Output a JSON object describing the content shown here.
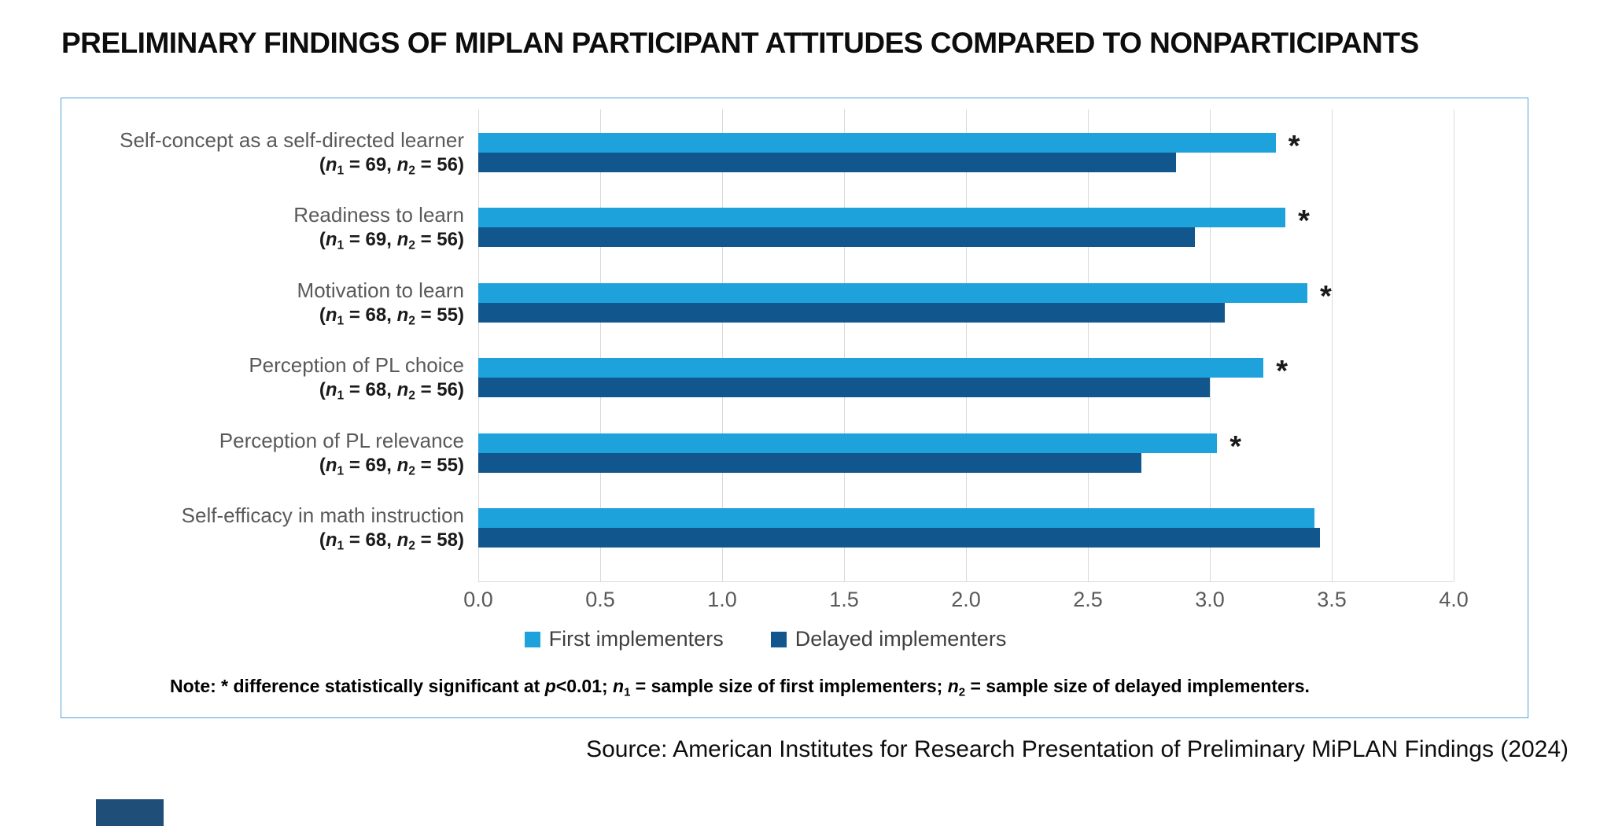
{
  "page": {
    "title": "PRELIMINARY FINDINGS OF MIPLAN PARTICIPANT ATTITUDES COMPARED TO NONPARTICIPANTS",
    "source": "Source: American Institutes for Research Presentation of Preliminary MiPLAN Findings (2024)"
  },
  "colors": {
    "first": "#1ea2dc",
    "delayed": "#11568c",
    "grid": "#d9d9d9",
    "box_border": "#55a0d6",
    "label_gray": "#595959",
    "footer_accent": "#1f4e79"
  },
  "chart_data": {
    "type": "bar",
    "orientation": "horizontal",
    "title": "PRELIMINARY FINDINGS OF MIPLAN PARTICIPANT ATTITUDES COMPARED TO NONPARTICIPANTS",
    "xlabel": "",
    "ylabel": "",
    "xlim": [
      0.0,
      4.0
    ],
    "xticks": [
      "0.0",
      "0.5",
      "1.0",
      "1.5",
      "2.0",
      "2.5",
      "3.0",
      "3.5",
      "4.0"
    ],
    "grid": true,
    "legend_position": "bottom",
    "significance_marker": "*",
    "categories": [
      {
        "label": "Self-concept as a self-directed learner",
        "n1": 69,
        "n2": 56,
        "significant": true
      },
      {
        "label": "Readiness to learn",
        "n1": 69,
        "n2": 56,
        "significant": true
      },
      {
        "label": "Motivation to learn",
        "n1": 68,
        "n2": 55,
        "significant": true
      },
      {
        "label": "Perception of PL choice",
        "n1": 68,
        "n2": 56,
        "significant": true
      },
      {
        "label": "Perception of PL relevance",
        "n1": 69,
        "n2": 55,
        "significant": true
      },
      {
        "label": "Self-efficacy in math instruction",
        "n1": 68,
        "n2": 58,
        "significant": false
      }
    ],
    "series": [
      {
        "name": "First implementers",
        "color": "#1ea2dc",
        "values": [
          3.27,
          3.31,
          3.4,
          3.22,
          3.03,
          3.43
        ]
      },
      {
        "name": "Delayed implementers",
        "color": "#11568c",
        "values": [
          2.86,
          2.94,
          3.06,
          3.0,
          2.72,
          3.45
        ]
      }
    ]
  },
  "legend": {
    "items": [
      {
        "label": "First implementers",
        "color": "#1ea2dc"
      },
      {
        "label": "Delayed implementers",
        "color": "#11568c"
      }
    ]
  },
  "note": {
    "segments": [
      {
        "text": "Note: * difference statistically significant at "
      },
      {
        "text": "p",
        "italic": true
      },
      {
        "text": "<0.01; "
      },
      {
        "text": "n",
        "italic": true
      },
      {
        "text": "1",
        "sub": true
      },
      {
        "text": " = sample size of first implementers; "
      },
      {
        "text": "n",
        "italic": true
      },
      {
        "text": "2",
        "sub": true
      },
      {
        "text": " = sample size of delayed implementers."
      }
    ]
  }
}
